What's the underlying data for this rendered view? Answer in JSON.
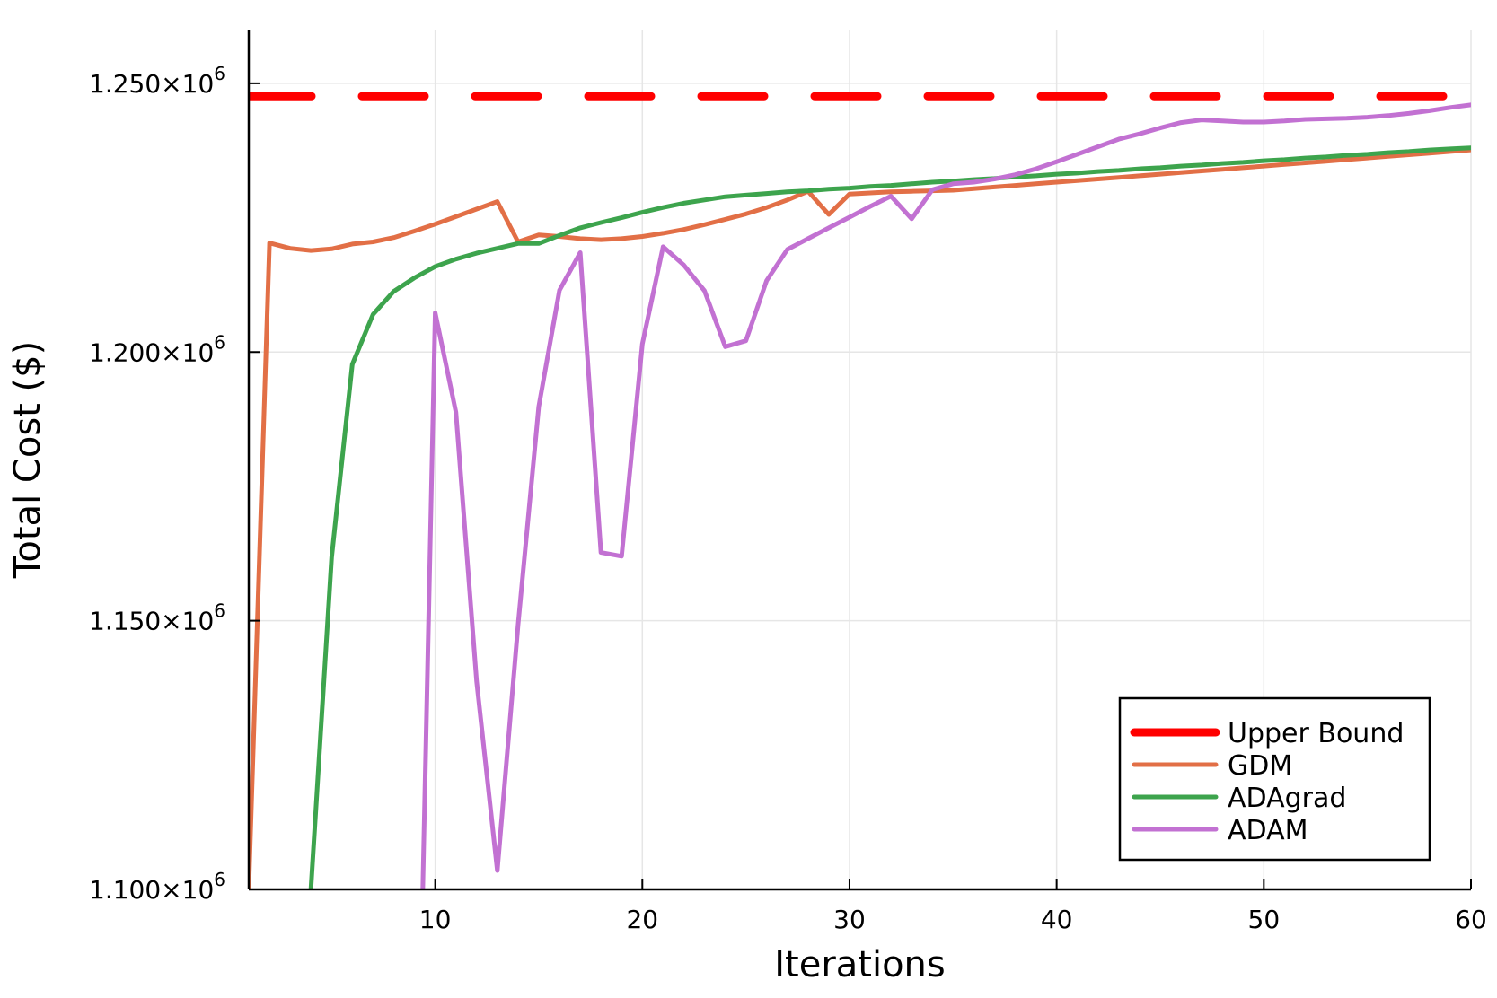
{
  "chart_data": {
    "type": "line",
    "xlabel": "Iterations",
    "ylabel": "Total Cost ($)",
    "xlim": [
      1,
      60
    ],
    "ylim": [
      1100000,
      1260000
    ],
    "xticks": [
      10,
      20,
      30,
      40,
      50,
      60
    ],
    "yticks": [
      {
        "value": 1100000,
        "mantissa": "1.100×10",
        "exponent": "6"
      },
      {
        "value": 1150000,
        "mantissa": "1.150×10",
        "exponent": "6"
      },
      {
        "value": 1200000,
        "mantissa": "1.200×10",
        "exponent": "6"
      },
      {
        "value": 1250000,
        "mantissa": "1.250×10",
        "exponent": "6"
      }
    ],
    "grid": true,
    "legend_position": "bottom-right",
    "series": [
      {
        "name": "Upper Bound",
        "color": "#ff0000",
        "style": "dashed",
        "x": [
          1,
          60
        ],
        "y": [
          1247600,
          1247600
        ]
      },
      {
        "name": "GDM",
        "color": "#e26f46",
        "style": "solid",
        "x": [
          1,
          2,
          3,
          4,
          5,
          6,
          7,
          8,
          9,
          10,
          11,
          12,
          13,
          14,
          15,
          16,
          17,
          18,
          19,
          20,
          21,
          22,
          23,
          24,
          25,
          26,
          27,
          28,
          29,
          30,
          31,
          32,
          33,
          34,
          35,
          36,
          37,
          38,
          39,
          40,
          41,
          42,
          43,
          44,
          45,
          46,
          47,
          48,
          49,
          50,
          51,
          52,
          53,
          54,
          55,
          56,
          57,
          58,
          59,
          60
        ],
        "y": [
          1100000,
          1220300,
          1219300,
          1218900,
          1219200,
          1220100,
          1220500,
          1221300,
          1222500,
          1223800,
          1225200,
          1226600,
          1228000,
          1220500,
          1221800,
          1221500,
          1221100,
          1220900,
          1221100,
          1221500,
          1222100,
          1222800,
          1223700,
          1224700,
          1225700,
          1226900,
          1228300,
          1229900,
          1225600,
          1229400,
          1229600,
          1229800,
          1229900,
          1230000,
          1230100,
          1230400,
          1230700,
          1231000,
          1231300,
          1231600,
          1231900,
          1232200,
          1232500,
          1232800,
          1233100,
          1233400,
          1233700,
          1234000,
          1234300,
          1234600,
          1234900,
          1235200,
          1235500,
          1235800,
          1236100,
          1236400,
          1236700,
          1237000,
          1237300,
          1237600
        ]
      },
      {
        "name": "ADAgrad",
        "color": "#3da44d",
        "style": "solid",
        "x": [
          4,
          5,
          6,
          7,
          8,
          9,
          10,
          11,
          12,
          13,
          14,
          15,
          16,
          17,
          18,
          19,
          20,
          21,
          22,
          23,
          24,
          25,
          26,
          27,
          28,
          29,
          30,
          31,
          32,
          33,
          34,
          35,
          36,
          37,
          38,
          39,
          40,
          41,
          42,
          43,
          44,
          45,
          46,
          47,
          48,
          49,
          50,
          51,
          52,
          53,
          54,
          55,
          56,
          57,
          58,
          59,
          60
        ],
        "y": [
          1100000,
          1161800,
          1197700,
          1207000,
          1211300,
          1213800,
          1215900,
          1217300,
          1218400,
          1219300,
          1220200,
          1220200,
          1221700,
          1223100,
          1224100,
          1225000,
          1226000,
          1226900,
          1227700,
          1228300,
          1228900,
          1229200,
          1229500,
          1229800,
          1230000,
          1230300,
          1230500,
          1230800,
          1231000,
          1231300,
          1231600,
          1231800,
          1232100,
          1232300,
          1232600,
          1232800,
          1233100,
          1233300,
          1233600,
          1233800,
          1234100,
          1234300,
          1234600,
          1234800,
          1235100,
          1235300,
          1235600,
          1235800,
          1236100,
          1236300,
          1236600,
          1236800,
          1237100,
          1237300,
          1237600,
          1237800,
          1238000
        ]
      },
      {
        "name": "ADAM",
        "color": "#c271d2",
        "style": "solid",
        "x": [
          9.4,
          10,
          11,
          12,
          13,
          14,
          15,
          16,
          17,
          18,
          19,
          20,
          21,
          22,
          23,
          24,
          25,
          26,
          27,
          28,
          29,
          30,
          31,
          32,
          33,
          34,
          35,
          36,
          37,
          38,
          39,
          40,
          41,
          42,
          43,
          44,
          45,
          46,
          47,
          48,
          49,
          50,
          51,
          52,
          53,
          54,
          55,
          56,
          57,
          58,
          59,
          60
        ],
        "y": [
          1100000,
          1207300,
          1188800,
          1138800,
          1103500,
          1149200,
          1189800,
          1211500,
          1218500,
          1162700,
          1162000,
          1201500,
          1219600,
          1216200,
          1211400,
          1201000,
          1202100,
          1213300,
          1219100,
          1221100,
          1223100,
          1225100,
          1227100,
          1229000,
          1224800,
          1230200,
          1231300,
          1231600,
          1232200,
          1233000,
          1234100,
          1235400,
          1236800,
          1238200,
          1239600,
          1240600,
          1241700,
          1242700,
          1243200,
          1243000,
          1242800,
          1242800,
          1243000,
          1243300,
          1243400,
          1243500,
          1243700,
          1244000,
          1244400,
          1244900,
          1245500,
          1246000
        ]
      }
    ]
  }
}
